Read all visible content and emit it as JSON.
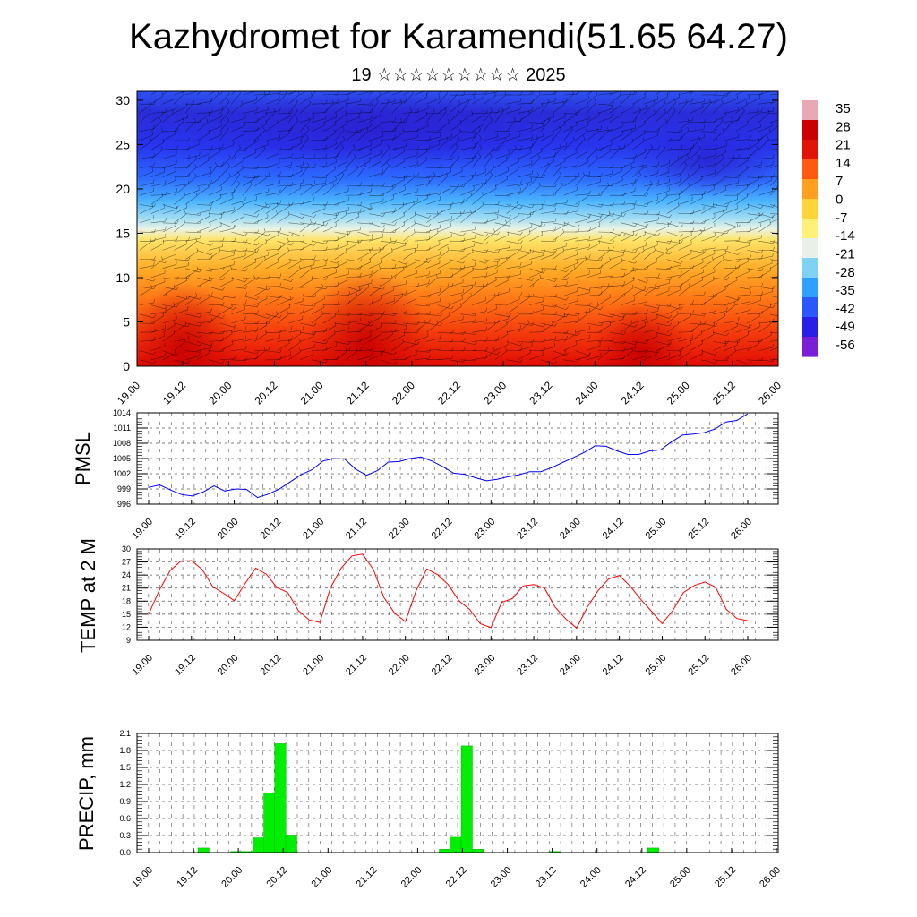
{
  "title": "Kazhydromet for Karamendi(51.65 64.27)",
  "subtitle": "19 ☆☆☆☆☆☆☆☆☆ 2025",
  "colors": {
    "pmsl_line": "#0000ff",
    "temp_line": "#ff0000",
    "precip_bar": "#00ee00",
    "cross_section_scale": [
      "#7a1fd6",
      "#2a1fe6",
      "#2b57ff",
      "#2ea0ff",
      "#7fd2f2",
      "#e8f0e8",
      "#fff07a",
      "#ffd43a",
      "#ffa020",
      "#ff5a10",
      "#e21408",
      "#cc0000",
      "#e9a9b4"
    ]
  },
  "chart_data": [
    {
      "id": "cross_section",
      "type": "heatmap",
      "title": "",
      "xlabel": "",
      "ylabel": "",
      "x_tick_labels": [
        "19.00",
        "19.12",
        "20.00",
        "20.12",
        "21.00",
        "21.12",
        "22.00",
        "22.12",
        "23.00",
        "23.12",
        "24.00",
        "24.12",
        "25.00",
        "25.12",
        "26.00"
      ],
      "y_ticks": [
        "0",
        "5",
        "10",
        "15",
        "20",
        "25",
        "30"
      ],
      "ylim": [
        0,
        31
      ],
      "colorbar_labels": [
        "35",
        "28",
        "21",
        "14",
        "7",
        "0",
        "-7",
        "-14",
        "-21",
        "-28",
        "-35",
        "-42",
        "-49",
        "-56"
      ],
      "overlay": "wind barbs",
      "description_levels": {
        "warm_surface_max": 35,
        "cold_top_min": -56
      }
    },
    {
      "id": "pmsl",
      "type": "line",
      "ylabel": "PMSL",
      "y_ticks": [
        "996",
        "999",
        "1002",
        "1005",
        "1008",
        "1011",
        "1014"
      ],
      "ylim": [
        996,
        1014
      ],
      "x_tick_labels": [
        "19.00",
        "19.12",
        "20.00",
        "20.12",
        "21.00",
        "21.12",
        "22.00",
        "22.12",
        "23.00",
        "23.12",
        "24.00",
        "24.12",
        "25.00",
        "25.12",
        "26.00"
      ],
      "step_hours": 3,
      "values": [
        999.3,
        999.8,
        998.8,
        997.9,
        997.6,
        998.4,
        999.6,
        998.6,
        999.0,
        998.9,
        997.3,
        998.0,
        999.0,
        1000.4,
        1001.8,
        1002.8,
        1004.5,
        1005.0,
        1004.9,
        1002.9,
        1001.7,
        1002.6,
        1004.3,
        1004.4,
        1005.0,
        1005.3,
        1004.5,
        1003.4,
        1002.1,
        1001.9,
        1001.2,
        1000.6,
        1000.9,
        1001.4,
        1001.8,
        1002.4,
        1002.4,
        1003.2,
        1004.2,
        1005.2,
        1006.2,
        1007.5,
        1007.4,
        1006.5,
        1005.8,
        1005.8,
        1006.5,
        1006.7,
        1008.3,
        1009.6,
        1009.8,
        1010.1,
        1010.8,
        1012.2,
        1012.5,
        1013.8
      ]
    },
    {
      "id": "temp2m",
      "type": "line",
      "ylabel": "TEMP at 2 M",
      "y_ticks": [
        "9",
        "12",
        "15",
        "18",
        "21",
        "24",
        "27",
        "30"
      ],
      "ylim": [
        9,
        30
      ],
      "x_tick_labels": [
        "19.00",
        "19.12",
        "20.00",
        "20.12",
        "21.00",
        "21.12",
        "22.00",
        "22.12",
        "23.00",
        "23.12",
        "24.00",
        "24.12",
        "25.00",
        "25.12",
        "26.00"
      ],
      "step_hours": 3,
      "values": [
        15.0,
        20.5,
        25.0,
        27.2,
        27.3,
        25.3,
        21.3,
        19.8,
        18.1,
        22.0,
        25.6,
        24.2,
        21.1,
        20.0,
        15.8,
        13.7,
        13.1,
        21.1,
        25.6,
        28.4,
        28.8,
        25.3,
        18.8,
        15.2,
        13.3,
        20.4,
        25.4,
        24.1,
        21.8,
        18.1,
        16.1,
        12.8,
        11.9,
        17.7,
        18.6,
        21.5,
        21.8,
        21.0,
        16.6,
        13.9,
        11.8,
        16.6,
        20.4,
        23.1,
        23.9,
        21.5,
        18.4,
        15.7,
        12.8,
        15.9,
        20.0,
        21.6,
        22.4,
        21.2,
        16.1,
        14.0,
        13.5
      ]
    },
    {
      "id": "precip",
      "type": "bar",
      "ylabel": "PRECIP, mm",
      "y_ticks": [
        "0.0",
        "0.3",
        "0.6",
        "0.9",
        "1.2",
        "1.5",
        "1.8",
        "2.1"
      ],
      "ylim": [
        0,
        2.1
      ],
      "x_tick_labels": [
        "19.00",
        "19.12",
        "20.00",
        "20.12",
        "21.00",
        "21.12",
        "22.00",
        "22.12",
        "23.00",
        "23.12",
        "24.00",
        "24.12",
        "25.00",
        "25.12",
        "26.00"
      ],
      "step_hours": 3,
      "values": [
        0,
        0,
        0,
        0,
        0,
        0.08,
        0,
        0,
        0.02,
        0.02,
        0.26,
        1.05,
        1.92,
        0.31,
        0,
        0,
        0,
        0,
        0,
        0,
        0,
        0,
        0,
        0,
        0,
        0,
        0,
        0.06,
        0.27,
        1.88,
        0.06,
        0,
        0,
        0,
        0,
        0,
        0,
        0.02,
        0,
        0,
        0,
        0,
        0,
        0,
        0,
        0,
        0.08,
        0,
        0,
        0,
        0,
        0,
        0,
        0,
        0,
        0
      ]
    }
  ]
}
